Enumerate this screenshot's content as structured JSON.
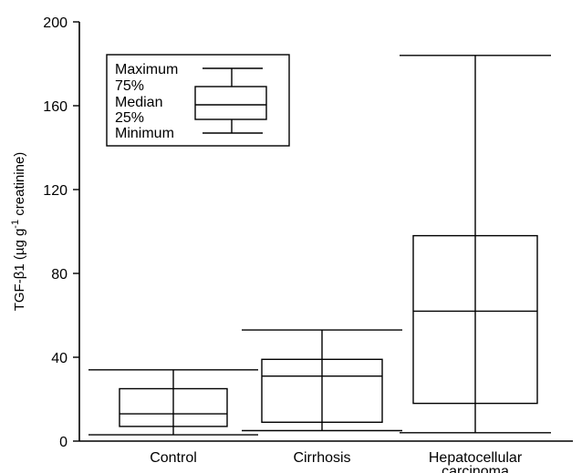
{
  "chart_data": {
    "type": "box",
    "ylabel": "TGF-β1 (µg g",
    "ylabel_sup": "-1",
    "ylabel_tail": " creatinine)",
    "ylim": [
      0,
      200
    ],
    "yticks": [
      0,
      40,
      80,
      120,
      160,
      200
    ],
    "categories": [
      {
        "lines": [
          "Control"
        ]
      },
      {
        "lines": [
          "Cirrhosis"
        ]
      },
      {
        "lines": [
          "Hepatocellular",
          "carcinoma"
        ]
      }
    ],
    "series": [
      {
        "min": 3,
        "q1": 7,
        "median": 13,
        "q3": 25,
        "max": 34,
        "low_whisker": 3
      },
      {
        "min": 5,
        "q1": 9,
        "median": 31,
        "q3": 39,
        "max": 53,
        "low_whisker": 5
      },
      {
        "min": 4,
        "q1": 18,
        "median": 62,
        "q3": 98,
        "max": 184,
        "low_whisker": 4
      }
    ],
    "legend": {
      "position": "top-left",
      "items": [
        "Maximum",
        "75%",
        "Median",
        "25%",
        "Minimum"
      ]
    },
    "grid": false
  }
}
